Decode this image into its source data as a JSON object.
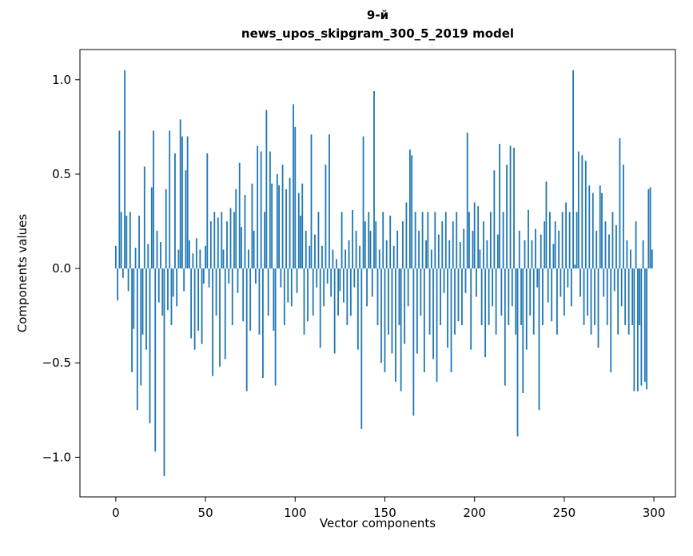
{
  "figure": {
    "title_line1": "9-й",
    "title_line2": "news_upos_skipgram_300_5_2019 model",
    "xlabel": "Vector components",
    "ylabel": "Components values"
  },
  "chart_data": {
    "type": "bar",
    "title": "9-й\nnews_upos_skipgram_300_5_2019 model",
    "xlabel": "Vector components",
    "ylabel": "Components values",
    "legend": "none",
    "grid": false,
    "bar_color": "#1f77b4",
    "n_bars": 300,
    "xlim": [
      -20,
      312
    ],
    "ylim": [
      -1.21,
      1.16
    ],
    "xticks": [
      0,
      50,
      100,
      150,
      200,
      250,
      300
    ],
    "yticks": [
      -1.0,
      -0.5,
      0.0,
      0.5,
      1.0
    ],
    "ytick_labels": [
      "−1.0",
      "−0.5",
      "0.0",
      "0.5",
      "1.0"
    ],
    "values": [
      0.12,
      -0.17,
      0.73,
      0.3,
      -0.05,
      1.05,
      0.28,
      -0.12,
      0.3,
      -0.55,
      -0.32,
      0.11,
      -0.75,
      0.28,
      -0.62,
      -0.35,
      0.54,
      -0.43,
      0.13,
      -0.82,
      0.43,
      0.73,
      -0.97,
      0.2,
      -0.18,
      0.14,
      -0.25,
      -1.1,
      0.42,
      -0.22,
      0.73,
      -0.3,
      -0.15,
      0.61,
      -0.2,
      0.1,
      0.79,
      0.7,
      -0.12,
      0.52,
      0.7,
      0.15,
      -0.37,
      0.08,
      -0.43,
      0.16,
      -0.33,
      0.1,
      -0.4,
      -0.08,
      0.12,
      0.61,
      -0.1,
      0.25,
      -0.57,
      0.3,
      -0.25,
      0.27,
      -0.52,
      0.3,
      0.1,
      -0.48,
      0.25,
      -0.08,
      0.32,
      -0.3,
      0.3,
      0.42,
      -0.13,
      0.56,
      0.22,
      -0.28,
      0.39,
      -0.65,
      0.1,
      -0.33,
      0.45,
      0.2,
      -0.08,
      0.65,
      -0.35,
      0.62,
      -0.58,
      0.3,
      0.84,
      -0.25,
      0.62,
      0.45,
      -0.33,
      -0.62,
      0.5,
      0.44,
      -0.1,
      0.55,
      -0.3,
      0.42,
      -0.18,
      0.48,
      -0.2,
      0.87,
      0.75,
      -0.13,
      0.4,
      0.28,
      0.45,
      -0.35,
      0.2,
      -0.28,
      0.12,
      0.71,
      -0.25,
      0.18,
      -0.1,
      0.3,
      -0.42,
      0.12,
      -0.2,
      0.55,
      -0.08,
      0.71,
      -0.15,
      0.1,
      -0.45,
      0.05,
      -0.25,
      -0.12,
      0.3,
      -0.18,
      0.1,
      -0.3,
      0.15,
      -0.25,
      0.31,
      -0.1,
      0.2,
      -0.43,
      0.12,
      -0.85,
      0.7,
      0.25,
      -0.2,
      0.3,
      0.2,
      -0.15,
      0.94,
      0.25,
      -0.3,
      0.1,
      -0.5,
      0.3,
      -0.55,
      0.15,
      -0.35,
      0.28,
      -0.45,
      0.12,
      -0.6,
      0.2,
      -0.3,
      -0.65,
      0.25,
      -0.4,
      0.35,
      -0.2,
      0.63,
      0.6,
      -0.78,
      0.3,
      -0.45,
      0.2,
      -0.25,
      0.3,
      -0.55,
      0.15,
      0.3,
      -0.35,
      0.1,
      -0.48,
      0.3,
      -0.6,
      0.18,
      -0.3,
      0.25,
      -0.13,
      0.3,
      -0.42,
      0.15,
      -0.55,
      0.25,
      -0.35,
      0.3,
      -0.28,
      0.14,
      -0.3,
      0.21,
      -0.13,
      0.72,
      0.3,
      -0.43,
      0.2,
      0.35,
      -0.15,
      0.33,
      0.1,
      -0.3,
      0.25,
      -0.47,
      0.15,
      -0.3,
      0.3,
      -0.2,
      0.52,
      -0.35,
      0.18,
      0.66,
      -0.25,
      0.3,
      -0.62,
      0.55,
      -0.3,
      0.65,
      -0.2,
      0.64,
      -0.35,
      -0.89,
      0.2,
      -0.3,
      -0.66,
      0.15,
      -0.43,
      0.31,
      -0.25,
      0.15,
      -0.35,
      0.21,
      -0.1,
      -0.75,
      0.18,
      -0.3,
      0.25,
      0.46,
      -0.18,
      0.3,
      -0.28,
      0.13,
      0.25,
      -0.35,
      0.2,
      -0.15,
      0.3,
      -0.25,
      0.35,
      -0.1,
      0.3,
      -0.2,
      1.05,
      0.02,
      0.3,
      0.62,
      -0.15,
      0.6,
      -0.3,
      0.57,
      -0.25,
      0.44,
      -0.35,
      0.4,
      -0.3,
      0.2,
      -0.42,
      0.44,
      0.4,
      -0.15,
      0.25,
      -0.3,
      0.18,
      -0.55,
      0.3,
      -0.12,
      0.23,
      -0.35,
      0.69,
      -0.2,
      0.55,
      -0.3,
      0.15,
      -0.35,
      0.1,
      -0.3,
      -0.65,
      0.25,
      -0.65,
      -0.3,
      -0.62,
      0.15,
      -0.6,
      -0.64,
      0.42,
      0.43,
      0.1
    ]
  }
}
